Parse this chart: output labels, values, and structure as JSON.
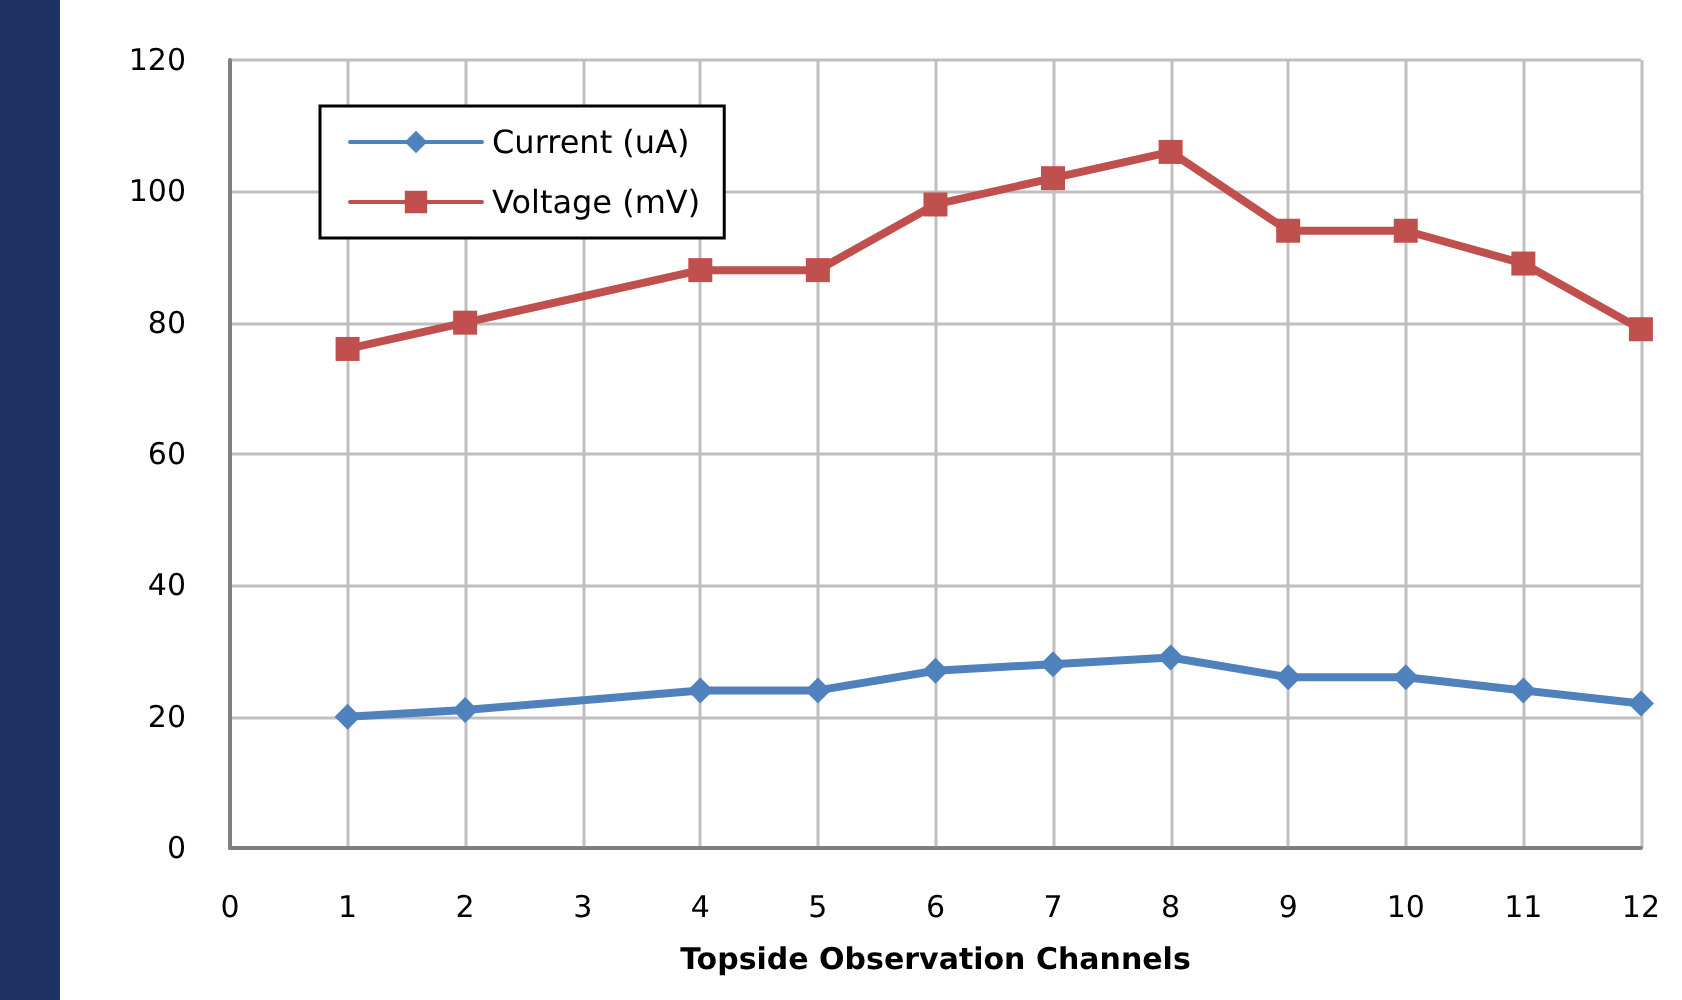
{
  "chart_data": {
    "type": "line",
    "xlabel": "Topside Observation Channels",
    "x": [
      1,
      2,
      4,
      5,
      6,
      7,
      8,
      9,
      10,
      11,
      12
    ],
    "series": [
      {
        "name": "Current (uA)",
        "color": "#4f81bd",
        "marker": "diamond",
        "values": [
          20,
          21,
          24,
          24,
          27,
          28,
          29,
          26,
          26,
          24,
          22
        ]
      },
      {
        "name": "Voltage (mV)",
        "color": "#c0504d",
        "marker": "square",
        "values": [
          76,
          80,
          88,
          88,
          98,
          102,
          106,
          94,
          94,
          89,
          79
        ]
      }
    ],
    "xlim": [
      0,
      12
    ],
    "xticks": [
      0,
      1,
      2,
      3,
      4,
      5,
      6,
      7,
      8,
      9,
      10,
      11,
      12
    ],
    "ylim": [
      0,
      120
    ],
    "yticks": [
      0,
      20,
      40,
      60,
      80,
      100,
      120
    ],
    "grid": true,
    "legend": "top left",
    "line_style": "solid"
  }
}
